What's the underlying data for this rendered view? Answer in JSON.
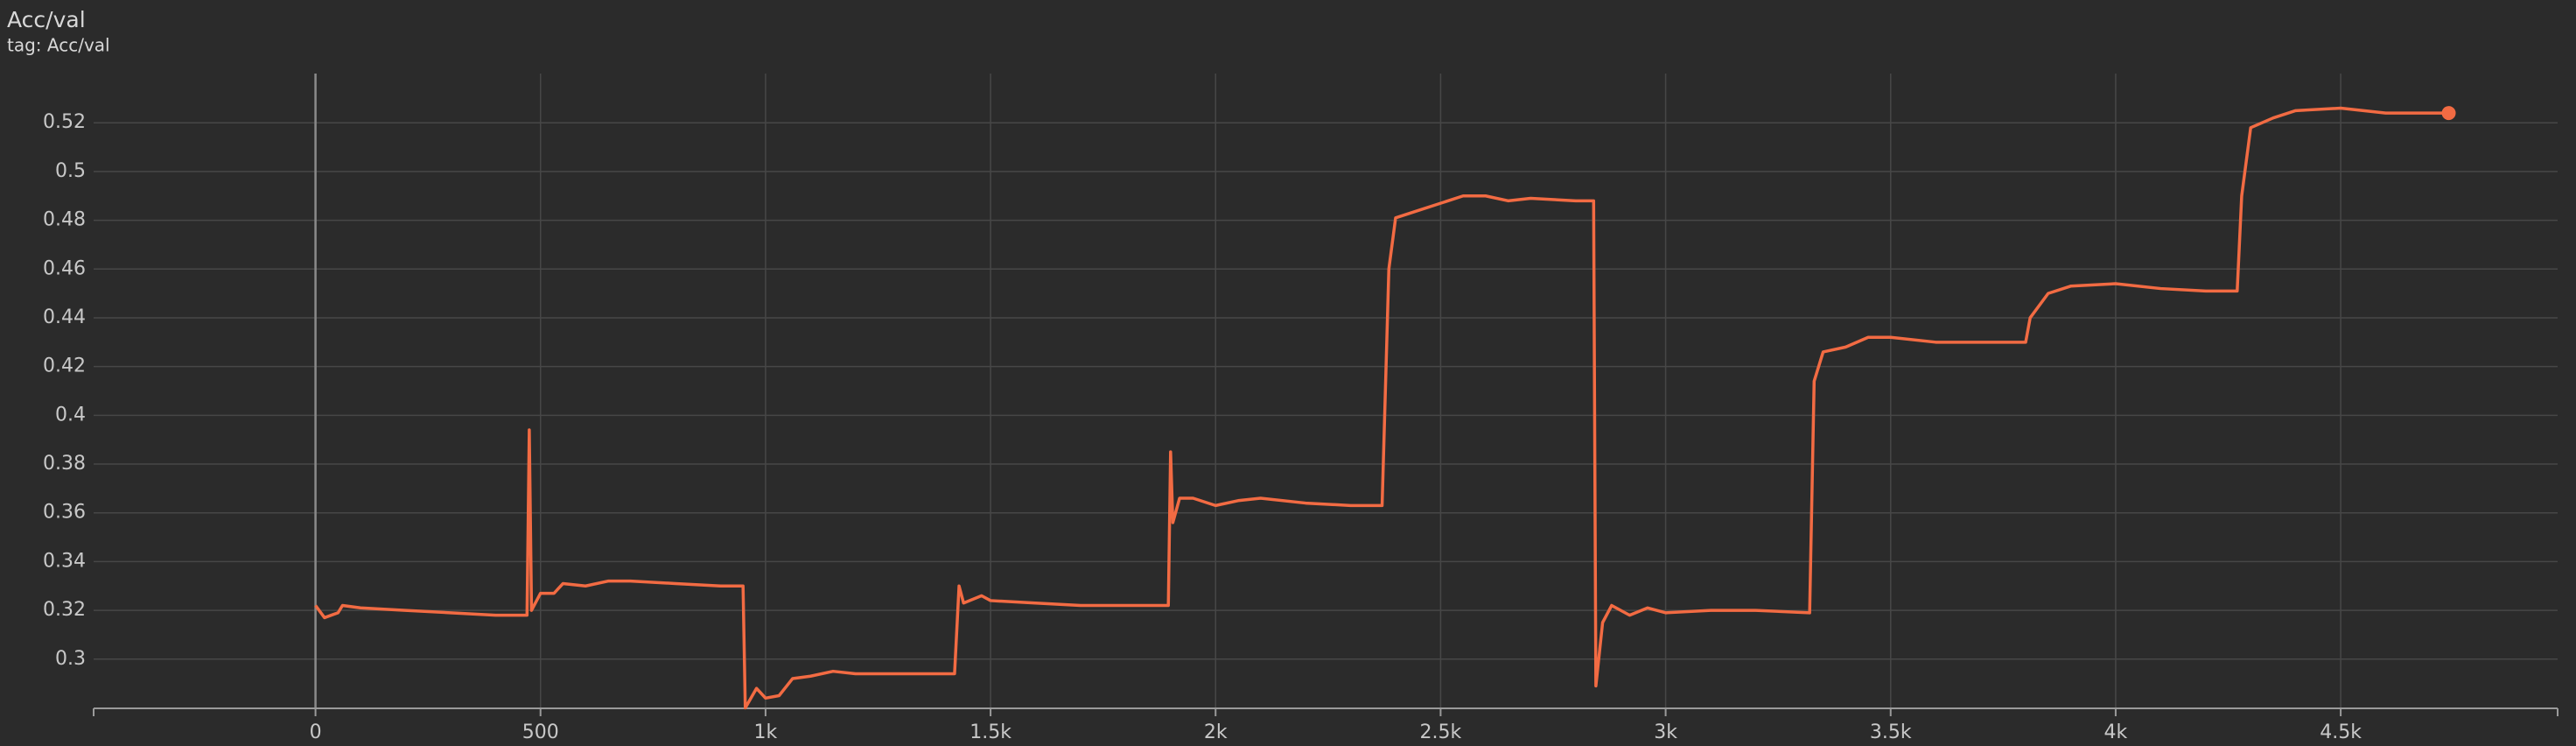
{
  "chart_data": {
    "type": "line",
    "title": "Acc/val",
    "subtitle": "tag: Acc/val",
    "x": [
      0,
      20,
      50,
      60,
      100,
      200,
      300,
      400,
      470,
      475,
      480,
      500,
      530,
      550,
      600,
      650,
      700,
      800,
      900,
      950,
      955,
      980,
      1000,
      1030,
      1060,
      1100,
      1150,
      1200,
      1300,
      1420,
      1430,
      1440,
      1480,
      1500,
      1600,
      1700,
      1800,
      1895,
      1900,
      1905,
      1920,
      1950,
      2000,
      2050,
      2100,
      2200,
      2300,
      2370,
      2385,
      2400,
      2450,
      2500,
      2550,
      2600,
      2650,
      2700,
      2800,
      2840,
      2845,
      2860,
      2880,
      2920,
      2960,
      3000,
      3100,
      3200,
      3320,
      3330,
      3350,
      3400,
      3450,
      3500,
      3600,
      3700,
      3800,
      3810,
      3850,
      3900,
      4000,
      4100,
      4200,
      4270,
      4280,
      4300,
      4350,
      4400,
      4500,
      4600,
      4700,
      4740
    ],
    "series": [
      {
        "color": "#f26b43",
        "values": [
          0.322,
          0.317,
          0.319,
          0.322,
          0.321,
          0.32,
          0.319,
          0.318,
          0.318,
          0.394,
          0.32,
          0.327,
          0.327,
          0.331,
          0.33,
          0.332,
          0.332,
          0.331,
          0.33,
          0.33,
          0.28,
          0.288,
          0.284,
          0.285,
          0.292,
          0.293,
          0.295,
          0.294,
          0.294,
          0.294,
          0.33,
          0.323,
          0.326,
          0.324,
          0.323,
          0.322,
          0.322,
          0.322,
          0.385,
          0.356,
          0.366,
          0.366,
          0.363,
          0.365,
          0.366,
          0.364,
          0.363,
          0.363,
          0.46,
          0.481,
          0.484,
          0.487,
          0.49,
          0.49,
          0.488,
          0.489,
          0.488,
          0.488,
          0.289,
          0.315,
          0.322,
          0.318,
          0.321,
          0.319,
          0.32,
          0.32,
          0.319,
          0.414,
          0.426,
          0.428,
          0.432,
          0.432,
          0.43,
          0.43,
          0.43,
          0.44,
          0.45,
          0.453,
          0.454,
          0.452,
          0.451,
          0.451,
          0.49,
          0.518,
          0.522,
          0.525,
          0.526,
          0.524,
          0.524,
          0.524
        ]
      }
    ],
    "xlim": [
      -493,
      4982
    ],
    "xticks": [
      0,
      500,
      {
        "value": 1000,
        "label": "1k"
      },
      {
        "value": 1500,
        "label": "1.5k"
      },
      {
        "value": 2000,
        "label": "2k"
      },
      {
        "value": 2500,
        "label": "2.5k"
      },
      {
        "value": 3000,
        "label": "3k"
      },
      {
        "value": 3500,
        "label": "3.5k"
      },
      {
        "value": 4000,
        "label": "4k"
      },
      {
        "value": 4500,
        "label": "4.5k"
      }
    ],
    "ylim": [
      0.2798,
      0.5402
    ],
    "yticks": [
      0.3,
      0.32,
      0.34,
      0.36,
      0.38,
      0.4,
      0.42,
      0.44,
      0.46,
      0.48,
      0.5,
      0.52
    ],
    "grid": true
  }
}
